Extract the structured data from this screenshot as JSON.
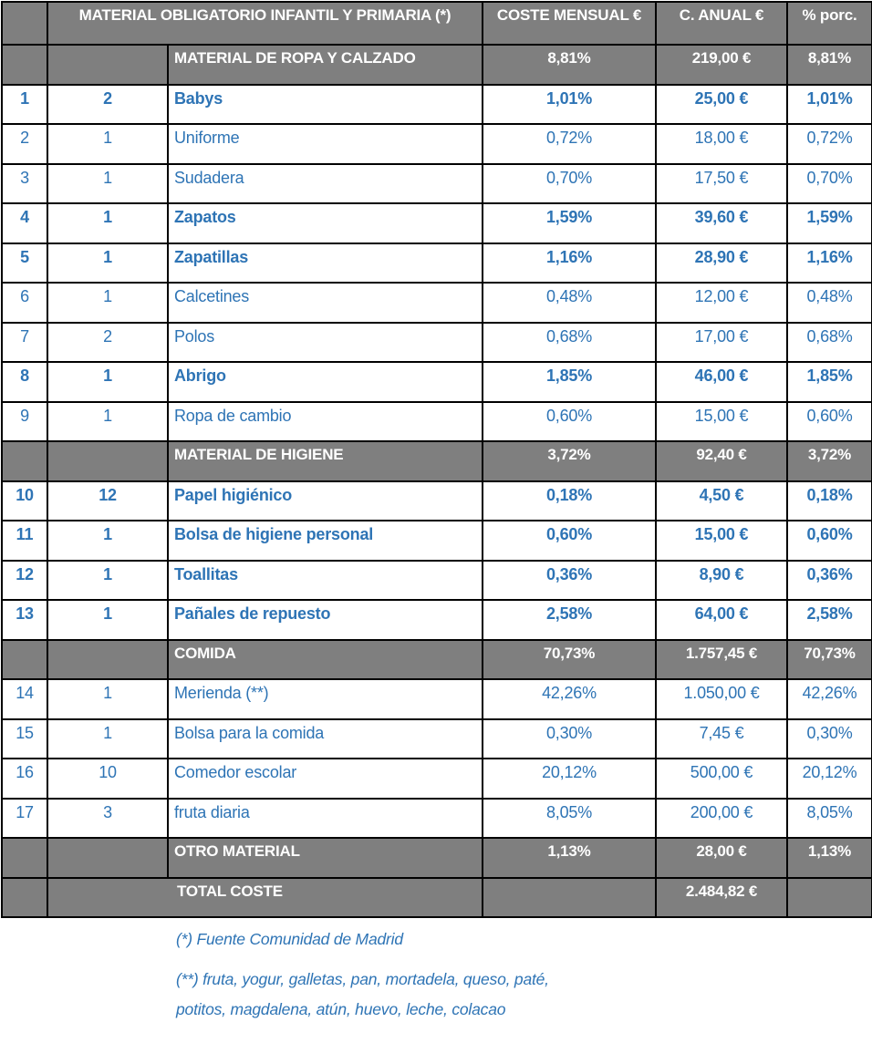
{
  "colors": {
    "section_bg": "#7f7f7f",
    "section_text": "#ffffff",
    "item_text": "#2e74b5",
    "border": "#000000"
  },
  "table": {
    "header": {
      "corner": "",
      "title": "MATERIAL OBLIGATORIO INFANTIL Y PRIMARIA (*)",
      "col_mensual": "COSTE MENSUAL €",
      "col_anual": "C. ANUAL €",
      "col_porc": "% porc."
    },
    "rows": [
      {
        "type": "section",
        "label": "MATERIAL DE ROPA Y CALZADO",
        "mensual": "8,81%",
        "anual": "219,00 €",
        "porc": "8,81%"
      },
      {
        "type": "item",
        "num": "1",
        "qty": "2",
        "label": "Babys",
        "mensual": "1,01%",
        "anual": "25,00 €",
        "porc": "1,01%",
        "bold": true
      },
      {
        "type": "item",
        "num": "2",
        "qty": "1",
        "label": "Uniforme",
        "mensual": "0,72%",
        "anual": "18,00 €",
        "porc": "0,72%",
        "bold": false
      },
      {
        "type": "item",
        "num": "3",
        "qty": "1",
        "label": "Sudadera",
        "mensual": "0,70%",
        "anual": "17,50 €",
        "porc": "0,70%",
        "bold": false
      },
      {
        "type": "item",
        "num": "4",
        "qty": "1",
        "label": "Zapatos",
        "mensual": "1,59%",
        "anual": "39,60 €",
        "porc": "1,59%",
        "bold": true
      },
      {
        "type": "item",
        "num": "5",
        "qty": "1",
        "label": "Zapatillas",
        "mensual": "1,16%",
        "anual": "28,90 €",
        "porc": "1,16%",
        "bold": true
      },
      {
        "type": "item",
        "num": "6",
        "qty": "1",
        "label": "Calcetines",
        "mensual": "0,48%",
        "anual": "12,00 €",
        "porc": "0,48%",
        "bold": false
      },
      {
        "type": "item",
        "num": "7",
        "qty": "2",
        "label": "Polos",
        "mensual": "0,68%",
        "anual": "17,00 €",
        "porc": "0,68%",
        "bold": false
      },
      {
        "type": "item",
        "num": "8",
        "qty": "1",
        "label": "Abrigo",
        "mensual": "1,85%",
        "anual": "46,00 €",
        "porc": "1,85%",
        "bold": true
      },
      {
        "type": "item",
        "num": "9",
        "qty": "1",
        "label": "Ropa de cambio",
        "mensual": "0,60%",
        "anual": "15,00 €",
        "porc": "0,60%",
        "bold": false
      },
      {
        "type": "section",
        "label": "MATERIAL DE HIGIENE",
        "mensual": "3,72%",
        "anual": "92,40 €",
        "porc": "3,72%"
      },
      {
        "type": "item",
        "num": "10",
        "qty": "12",
        "label": "Papel higiénico",
        "mensual": "0,18%",
        "anual": "4,50 €",
        "porc": "0,18%",
        "bold": true
      },
      {
        "type": "item",
        "num": "11",
        "qty": "1",
        "label": "Bolsa de higiene personal",
        "mensual": "0,60%",
        "anual": "15,00 €",
        "porc": "0,60%",
        "bold": true
      },
      {
        "type": "item",
        "num": "12",
        "qty": "1",
        "label": "Toallitas",
        "mensual": "0,36%",
        "anual": "8,90 €",
        "porc": "0,36%",
        "bold": true
      },
      {
        "type": "item",
        "num": "13",
        "qty": "1",
        "label": "Pañales de repuesto",
        "mensual": "2,58%",
        "anual": "64,00 €",
        "porc": "2,58%",
        "bold": true
      },
      {
        "type": "section",
        "label": "COMIDA",
        "mensual": "70,73%",
        "anual": "1.757,45 €",
        "porc": "70,73%"
      },
      {
        "type": "item",
        "num": "14",
        "qty": "1",
        "label": "Merienda (**)",
        "mensual": "42,26%",
        "anual": "1.050,00 €",
        "porc": "42,26%",
        "bold": false
      },
      {
        "type": "item",
        "num": "15",
        "qty": "1",
        "label": "Bolsa para la comida",
        "mensual": "0,30%",
        "anual": "7,45 €",
        "porc": "0,30%",
        "bold": false
      },
      {
        "type": "item",
        "num": "16",
        "qty": "10",
        "label": "Comedor escolar",
        "mensual": "20,12%",
        "anual": "500,00 €",
        "porc": "20,12%",
        "bold": false
      },
      {
        "type": "item",
        "num": "17",
        "qty": "3",
        "label": "fruta diaria",
        "mensual": "8,05%",
        "anual": "200,00 €",
        "porc": "8,05%",
        "bold": false
      },
      {
        "type": "section",
        "label": "OTRO MATERIAL",
        "mensual": "1,13%",
        "anual": "28,00 €",
        "porc": "1,13%"
      },
      {
        "type": "total",
        "label": "TOTAL COSTE",
        "mensual": "",
        "anual": "2.484,82 €",
        "porc": ""
      }
    ]
  },
  "footnotes": {
    "line1": "(*) Fuente Comunidad de Madrid",
    "line2": "(**) fruta, yogur, galletas, pan, mortadela, queso, paté,",
    "line3": "potitos, magdalena, atún, huevo, leche, colacao"
  }
}
